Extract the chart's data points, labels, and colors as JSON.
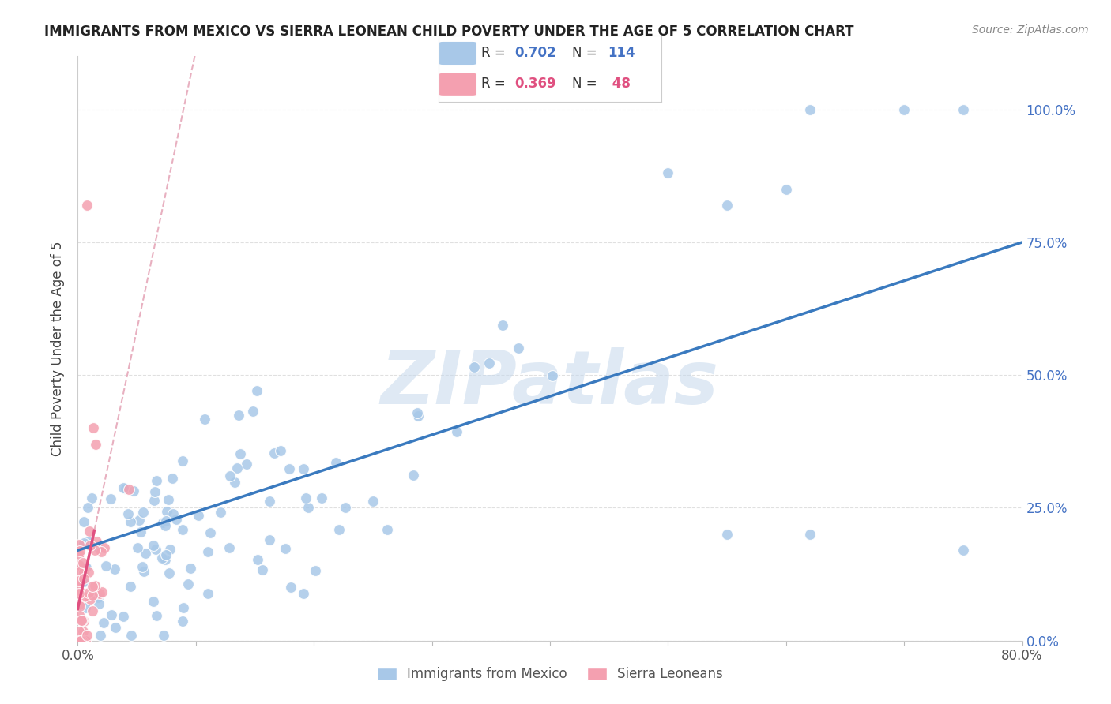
{
  "title": "IMMIGRANTS FROM MEXICO VS SIERRA LEONEAN CHILD POVERTY UNDER THE AGE OF 5 CORRELATION CHART",
  "source": "Source: ZipAtlas.com",
  "ylabel": "Child Poverty Under the Age of 5",
  "xlim": [
    0.0,
    0.8
  ],
  "ylim": [
    0.0,
    1.1
  ],
  "yticks": [
    0.0,
    0.25,
    0.5,
    0.75,
    1.0
  ],
  "ytick_labels": [
    "0.0%",
    "25.0%",
    "50.0%",
    "75.0%",
    "100.0%"
  ],
  "xticks": [
    0.0,
    0.1,
    0.2,
    0.3,
    0.4,
    0.5,
    0.6,
    0.7,
    0.8
  ],
  "xtick_labels": [
    "0.0%",
    "",
    "",
    "",
    "",
    "",
    "",
    "",
    "80.0%"
  ],
  "blue_color": "#a8c8e8",
  "pink_color": "#f4a0b0",
  "blue_line_color": "#3a7abf",
  "pink_line_color": "#e05080",
  "pink_dashed_color": "#e8b0c0",
  "legend_blue_R": "0.702",
  "legend_blue_N": "114",
  "legend_pink_R": "0.369",
  "legend_pink_N": "48",
  "watermark": "ZIPatlas",
  "background_color": "#ffffff",
  "grid_color": "#e0e0e0",
  "tick_color": "#4472c4",
  "blue_R_color": "#4472c4",
  "pink_R_color": "#e05080"
}
